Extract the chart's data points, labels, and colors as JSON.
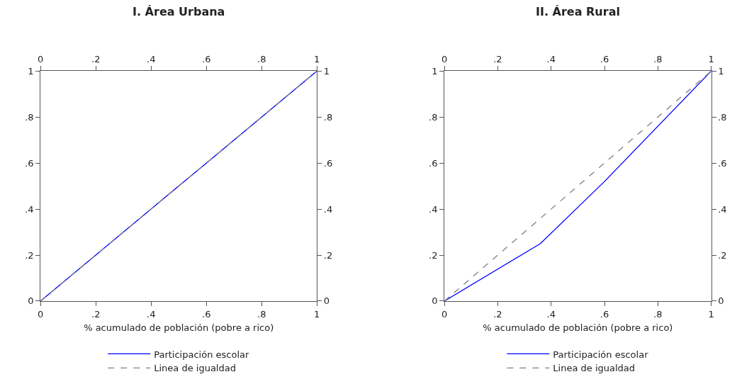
{
  "chart_data": [
    {
      "type": "line",
      "title": "I. Área Urbana",
      "xlabel": "% acumulado de población (pobre a rico)",
      "legend": "bottom",
      "xlim": [
        0,
        1
      ],
      "xticks": [
        {
          "value": 0,
          "label": "0"
        },
        {
          "value": 0.2,
          "label": ".2"
        },
        {
          "value": 0.4,
          "label": ".4"
        },
        {
          "value": 0.6,
          "label": ".6"
        },
        {
          "value": 0.8,
          "label": ".8"
        },
        {
          "value": 1,
          "label": "1"
        }
      ],
      "x2lim": [
        0,
        1
      ],
      "x2ticks": [
        {
          "value": 0,
          "label": "0"
        },
        {
          "value": 0.2,
          "label": ".2"
        },
        {
          "value": 0.4,
          "label": ".4"
        },
        {
          "value": 0.6,
          "label": ".6"
        },
        {
          "value": 0.8,
          "label": ".8"
        },
        {
          "value": 1,
          "label": "1"
        }
      ],
      "ylim": [
        0,
        1
      ],
      "yticks": [
        {
          "value": 0,
          "label": "0"
        },
        {
          "value": 0.2,
          "label": ".2"
        },
        {
          "value": 0.4,
          "label": ".4"
        },
        {
          "value": 0.6,
          "label": ".6"
        },
        {
          "value": 0.8,
          "label": ".8"
        },
        {
          "value": 1,
          "label": "1"
        }
      ],
      "y2lim": [
        0,
        1
      ],
      "y2ticks": [
        {
          "value": 0,
          "label": "0"
        },
        {
          "value": 0.2,
          "label": ".2"
        },
        {
          "value": 0.4,
          "label": ".4"
        },
        {
          "value": 0.6,
          "label": ".6"
        },
        {
          "value": 0.8,
          "label": ".8"
        },
        {
          "value": 1,
          "label": "1"
        }
      ],
      "series": [
        {
          "name": "Participación escolar",
          "color": "#0000ff",
          "line_style": "solid",
          "x": [
            0,
            0.2,
            0.4,
            0.6,
            0.8,
            1
          ],
          "values": [
            0,
            0.2,
            0.4,
            0.6,
            0.8,
            1
          ]
        },
        {
          "name": "Linea de igualdad",
          "color": "#808080",
          "line_style": "dashed",
          "x": [
            0,
            1
          ],
          "values": [
            0,
            1
          ]
        }
      ]
    },
    {
      "type": "line",
      "title": "II. Área Rural",
      "xlabel": "% acumulado de población (pobre a rico)",
      "legend": "bottom",
      "xlim": [
        0,
        1
      ],
      "xticks": [
        {
          "value": 0,
          "label": "0"
        },
        {
          "value": 0.2,
          "label": ".2"
        },
        {
          "value": 0.4,
          "label": ".4"
        },
        {
          "value": 0.6,
          "label": ".6"
        },
        {
          "value": 0.8,
          "label": ".8"
        },
        {
          "value": 1,
          "label": "1"
        }
      ],
      "x2lim": [
        0,
        1
      ],
      "x2ticks": [
        {
          "value": 0,
          "label": "0"
        },
        {
          "value": 0.2,
          "label": ".2"
        },
        {
          "value": 0.4,
          "label": ".4"
        },
        {
          "value": 0.6,
          "label": ".6"
        },
        {
          "value": 0.8,
          "label": ".8"
        },
        {
          "value": 1,
          "label": "1"
        }
      ],
      "ylim": [
        0,
        1
      ],
      "yticks": [
        {
          "value": 0,
          "label": "0"
        },
        {
          "value": 0.2,
          "label": ".2"
        },
        {
          "value": 0.4,
          "label": ".4"
        },
        {
          "value": 0.6,
          "label": ".6"
        },
        {
          "value": 0.8,
          "label": ".8"
        },
        {
          "value": 1,
          "label": "1"
        }
      ],
      "y2lim": [
        0,
        1
      ],
      "y2ticks": [
        {
          "value": 0,
          "label": "0"
        },
        {
          "value": 0.2,
          "label": ".2"
        },
        {
          "value": 0.4,
          "label": ".4"
        },
        {
          "value": 0.6,
          "label": ".6"
        },
        {
          "value": 0.8,
          "label": ".8"
        },
        {
          "value": 1,
          "label": "1"
        }
      ],
      "series": [
        {
          "name": "Participación escolar",
          "color": "#0000ff",
          "line_style": "solid",
          "x": [
            0,
            0.36,
            0.6,
            1
          ],
          "values": [
            0,
            0.25,
            0.52,
            1
          ]
        },
        {
          "name": "Linea de igualdad",
          "color": "#808080",
          "line_style": "dashed",
          "x": [
            0,
            1
          ],
          "values": [
            0,
            1
          ]
        }
      ]
    }
  ]
}
